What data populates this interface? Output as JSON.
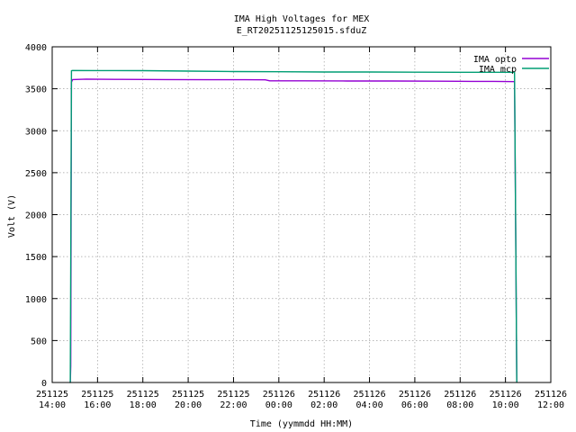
{
  "chart_data": {
    "type": "line",
    "title": "IMA High Voltages for MEX",
    "subtitle": "E_RT20251125125015.sfduZ",
    "xlabel": "Time (yymmdd HH:MM)",
    "ylabel": "Volt (V)",
    "x_unit": "hours",
    "xlim": [
      14,
      36
    ],
    "ylim": [
      0,
      4000
    ],
    "x_ticks": [
      {
        "value": 14,
        "date": "251125",
        "time": "14:00"
      },
      {
        "value": 16,
        "date": "251125",
        "time": "16:00"
      },
      {
        "value": 18,
        "date": "251125",
        "time": "18:00"
      },
      {
        "value": 20,
        "date": "251125",
        "time": "20:00"
      },
      {
        "value": 22,
        "date": "251125",
        "time": "22:00"
      },
      {
        "value": 24,
        "date": "251126",
        "time": "00:00"
      },
      {
        "value": 26,
        "date": "251126",
        "time": "02:00"
      },
      {
        "value": 28,
        "date": "251126",
        "time": "04:00"
      },
      {
        "value": 30,
        "date": "251126",
        "time": "06:00"
      },
      {
        "value": 32,
        "date": "251126",
        "time": "08:00"
      },
      {
        "value": 34,
        "date": "251126",
        "time": "10:00"
      },
      {
        "value": 36,
        "date": "251126",
        "time": "12:00"
      }
    ],
    "y_ticks": [
      0,
      500,
      1000,
      1500,
      2000,
      2500,
      3000,
      3500,
      4000
    ],
    "grid": true,
    "legend_position": "top-right",
    "series": [
      {
        "name": "IMA opto",
        "color": "#9400d3",
        "x": [
          14.8,
          14.82,
          14.85,
          14.9,
          15.5,
          17,
          19,
          21,
          22.5,
          23.4,
          23.6,
          25,
          27,
          29,
          31,
          32.5,
          33.5,
          34.4,
          34.45,
          34.5
        ],
        "y": [
          0,
          200,
          3580,
          3610,
          3615,
          3612,
          3610,
          3608,
          3607,
          3606,
          3595,
          3595,
          3593,
          3592,
          3590,
          3588,
          3588,
          3585,
          1800,
          0
        ]
      },
      {
        "name": "IMA mcp",
        "color": "#009e73",
        "x": [
          14.78,
          14.8,
          14.85,
          14.9,
          16,
          18,
          20,
          22,
          24,
          26,
          28,
          30,
          32,
          34,
          34.4,
          34.45,
          34.5
        ],
        "y": [
          0,
          0,
          3715,
          3718,
          3717,
          3716,
          3710,
          3705,
          3703,
          3700,
          3700,
          3698,
          3697,
          3697,
          3695,
          1800,
          0
        ]
      }
    ]
  }
}
